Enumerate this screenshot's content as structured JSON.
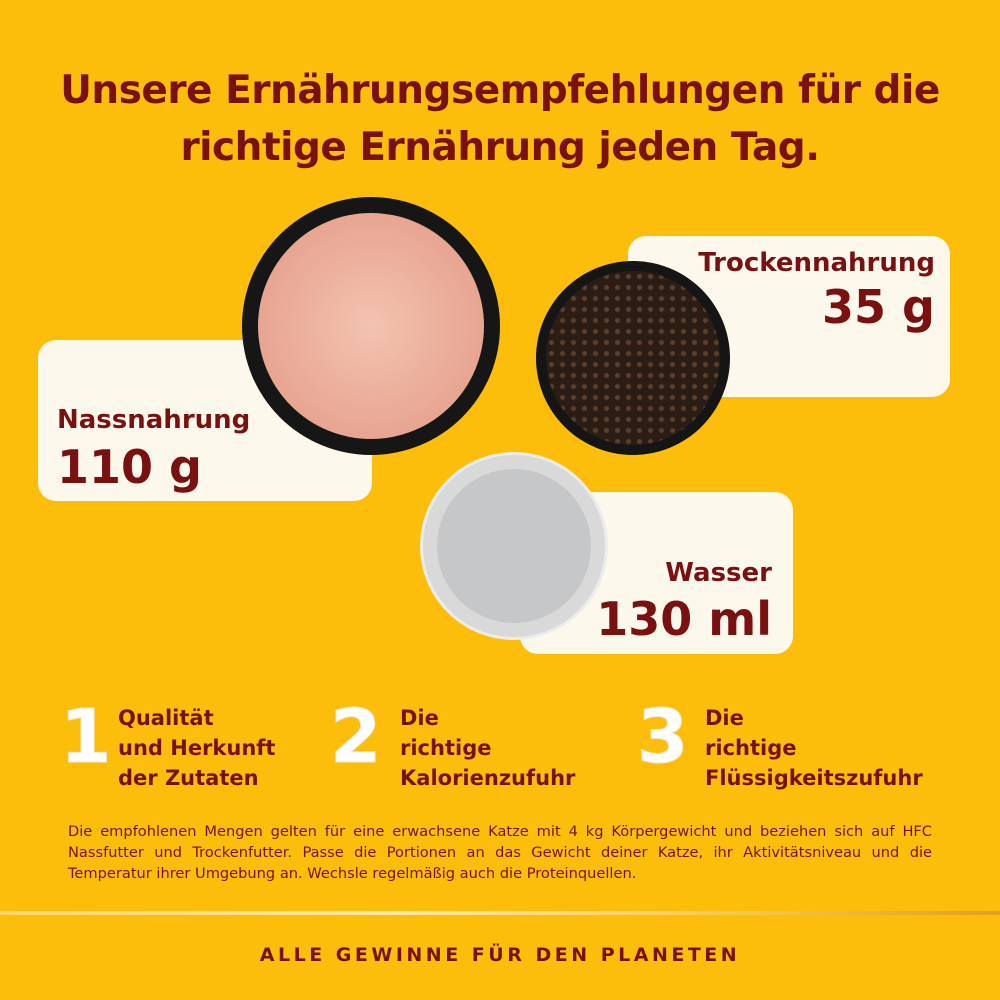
{
  "title": {
    "line1": "Unsere Ernährungsempfehlungen für die",
    "line2": "richtige Ernährung jeden Tag."
  },
  "portions": {
    "wet": {
      "label": "Nassnahrung",
      "value": "110 g"
    },
    "dry": {
      "label": "Trockennahrung",
      "value": "35 g"
    },
    "water": {
      "label": "Wasser",
      "value": "130 ml"
    }
  },
  "steps": [
    {
      "number": "1",
      "text": [
        "Qualität",
        "und Herkunft",
        "der Zutaten"
      ]
    },
    {
      "number": "2",
      "text": [
        "Die",
        "richtige",
        "Kalorienzufuhr"
      ]
    },
    {
      "number": "3",
      "text": [
        "Die",
        "richtige",
        "Flüssigkeitszufuhr"
      ]
    }
  ],
  "note": "Die empfohlenen Mengen gelten für eine erwachsene Katze mit 4 kg Körpergewicht und beziehen sich auf HFC Nassfutter und Trockenfutter. Passe die Portionen an das Gewicht deiner Katze, ihr Aktivitätsniveau und die Temperatur ihrer Umgebung an. Wechsle regelmäßig auch die Proteinquellen.",
  "tagline": "ALLE GEWINNE FÜR DEN PLANETEN",
  "colors": {
    "background": "#FDBE0B",
    "text": "#7A1111",
    "card": "#FDF8EC"
  }
}
